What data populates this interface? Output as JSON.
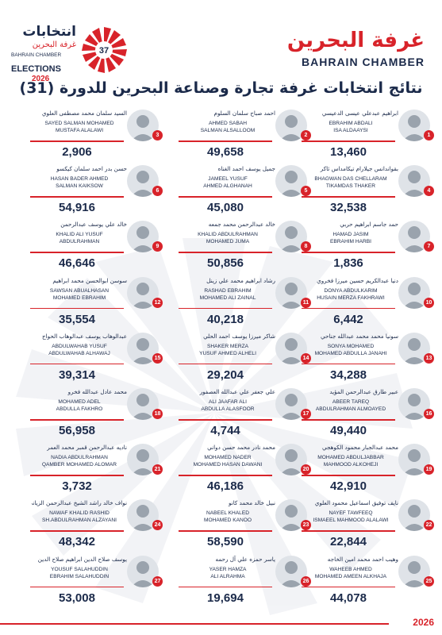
{
  "header": {
    "chamber_ar": "غرفة البحرين",
    "chamber_en": "BAHRAIN CHAMBER",
    "elections_ar": "انتخابات",
    "elections_sub_ar": "غرفة البحرين",
    "elections_chamber_en": "BAHRAIN CHAMBER",
    "elections_en": "ELECTIONS",
    "elections_year": "2026",
    "badge_number": "37"
  },
  "title": "نتائج انتخابات غرفة تجارة وصناعة البحرين للدورة (31)",
  "candidates": [
    {
      "num": "1",
      "ar": "ابراهيم عبدعلي عيسى الدعيسي",
      "en1": "EBRAHIM ABDALI",
      "en2": "ISA ALDAAYSI",
      "votes": "13,460"
    },
    {
      "num": "2",
      "ar": "احمد صباح سلمان السلوم",
      "en1": "AHMED SABAH",
      "en2": "SALMAN ALSALLOOM",
      "votes": "49,658"
    },
    {
      "num": "3",
      "ar": "السيد سلمان محمد مصطفى العلوي",
      "en1": "SAYED SALMAN MOHAMED",
      "en2": "MUSTAFA ALALAWI",
      "votes": "2,906"
    },
    {
      "num": "4",
      "ar": "بقواندانس جيلارام تيكامداس ثاكر",
      "en1": "BHAGWAN DAS CHELLARAM",
      "en2": "TIKAMDAS THAKER",
      "votes": "32,538"
    },
    {
      "num": "5",
      "ar": "جميل يوسف احمد الغناه",
      "en1": "JAMEEL YUSUF",
      "en2": "AHMED ALGHANAH",
      "votes": "45,080"
    },
    {
      "num": "6",
      "ar": "حسن بدر احمد سلمان كيكسو",
      "en1": "HASAN BADER AHMED",
      "en2": "SALMAN KAIKSOW",
      "votes": "54,916"
    },
    {
      "num": "7",
      "ar": "حمد جاسم ابراهيم حربي",
      "en1": "HAMAD JASIM",
      "en2": "EBRAHIM HARBI",
      "votes": "1,836"
    },
    {
      "num": "8",
      "ar": "خالد عبدالرحمن محمد جمعه",
      "en1": "KHALID ABDULRAHMAN",
      "en2": "MOHAMED JUMA",
      "votes": "50,856"
    },
    {
      "num": "9",
      "ar": "خالد علي يوسف عبدالرحمن",
      "en1": "KHALID ALI YUSUF",
      "en2": "ABDULRAHMAN",
      "votes": "46,646"
    },
    {
      "num": "10",
      "ar": "دنيا عبدالكريم حسين ميرزا فخروي",
      "en1": "DONYA ABDULKARIM",
      "en2": "HUSAIN MERZA FAKHRAWI",
      "votes": "6,442"
    },
    {
      "num": "11",
      "ar": "رشاد ابراهيم محمد علي زينل",
      "en1": "RASHAD EBRAHIM",
      "en2": "MOHAMED ALI ZAINAL",
      "votes": "40,218"
    },
    {
      "num": "12",
      "ar": "سوسن ابوالحسن محمد ابراهيم",
      "en1": "SAWSAN ABUALHASAN",
      "en2": "MOHAMED EBRAHIM",
      "votes": "35,554"
    },
    {
      "num": "13",
      "ar": "سونيا محمد محمد عبدالله جناحي",
      "en1": "SONYA MOHAMED",
      "en2": "MOHAMED ABDULLA JANAHI",
      "votes": "34,288"
    },
    {
      "num": "14",
      "ar": "شاكر ميرزا يوسف احمد الحلي",
      "en1": "SHAKER MERZA",
      "en2": "YUSUF AHMED ALHELI",
      "votes": "29,204"
    },
    {
      "num": "15",
      "ar": "عبدالوهاب يوسف عبدالوهاب الحواج",
      "en1": "ABDULWAHAB YUSUF",
      "en2": "ABDULWAHAB ALHAWAJ",
      "votes": "39,314"
    },
    {
      "num": "16",
      "ar": "عبير طارق عبدالرحمن المؤيد",
      "en1": "ABEER TAREQ",
      "en2": "ABDULRAHMAN ALMOAYED",
      "votes": "49,440"
    },
    {
      "num": "17",
      "ar": "علي جعفر علي عبدالله العصفور",
      "en1": "ALI JAAFAR ALI",
      "en2": "ABDULLA ALASFOOR",
      "votes": "4,744"
    },
    {
      "num": "18",
      "ar": "محمد عادل عبدالله فخرو",
      "en1": "MOHAMED ADEL",
      "en2": "ABDULLA FAKHRO",
      "votes": "56,958"
    },
    {
      "num": "19",
      "ar": "محمد عبدالجبار محمود الكوهجي",
      "en1": "MOHAMED ABDULJABBAR",
      "en2": "MAHMOOD ALKOHEJI",
      "votes": "42,910"
    },
    {
      "num": "20",
      "ar": "محمد نادر محمد حسن دواني",
      "en1": "MOHAMED NADER",
      "en2": "MOHAMED HASAN DAWANI",
      "votes": "46,186"
    },
    {
      "num": "21",
      "ar": "ناديه عبدالرحمن قمبر محمد العمر",
      "en1": "NADIA ABDULRAHMAN",
      "en2": "QAMBER MOHAMED ALOMAR",
      "votes": "3,732"
    },
    {
      "num": "22",
      "ar": "نايف توفيق اسماعيل محمود العلوي",
      "en1": "NAYEF TAWFEEQ",
      "en2": "ISMAEEL MAHMOOD ALALAWI",
      "votes": "22,844"
    },
    {
      "num": "23",
      "ar": "نبيل خالد محمد كانو",
      "en1": "NABEEL KHALED",
      "en2": "MOHAMED KANOO",
      "votes": "58,590"
    },
    {
      "num": "24",
      "ar": "نواف خالد راشد الشيخ عبدالرحمن الزياني",
      "en1": "NAWAF KHALID RASHID",
      "en2": "SH.ABDULRAHMAN ALZAYANI",
      "votes": "48,342"
    },
    {
      "num": "25",
      "ar": "وهيب احمد محمد امين الخاجه",
      "en1": "WAHEEB AHMED",
      "en2": "MOHAMED AMEEN ALKHAJA",
      "votes": "44,078"
    },
    {
      "num": "26",
      "ar": "ياسر حمزه علي آل رحمه",
      "en1": "YASER HAMZA",
      "en2": "ALI ALRAHMA",
      "votes": "19,694"
    },
    {
      "num": "27",
      "ar": "يوسف صلاح الدين ابراهيم صلاح الدين",
      "en1": "YOUSUF SALAHUDDIN",
      "en2": "EBRAHIM SALAHUDDIN",
      "votes": "53,008"
    }
  ],
  "footer": {
    "year": "2026"
  },
  "colors": {
    "accent": "#d8232a",
    "navy": "#1b2a4a"
  }
}
